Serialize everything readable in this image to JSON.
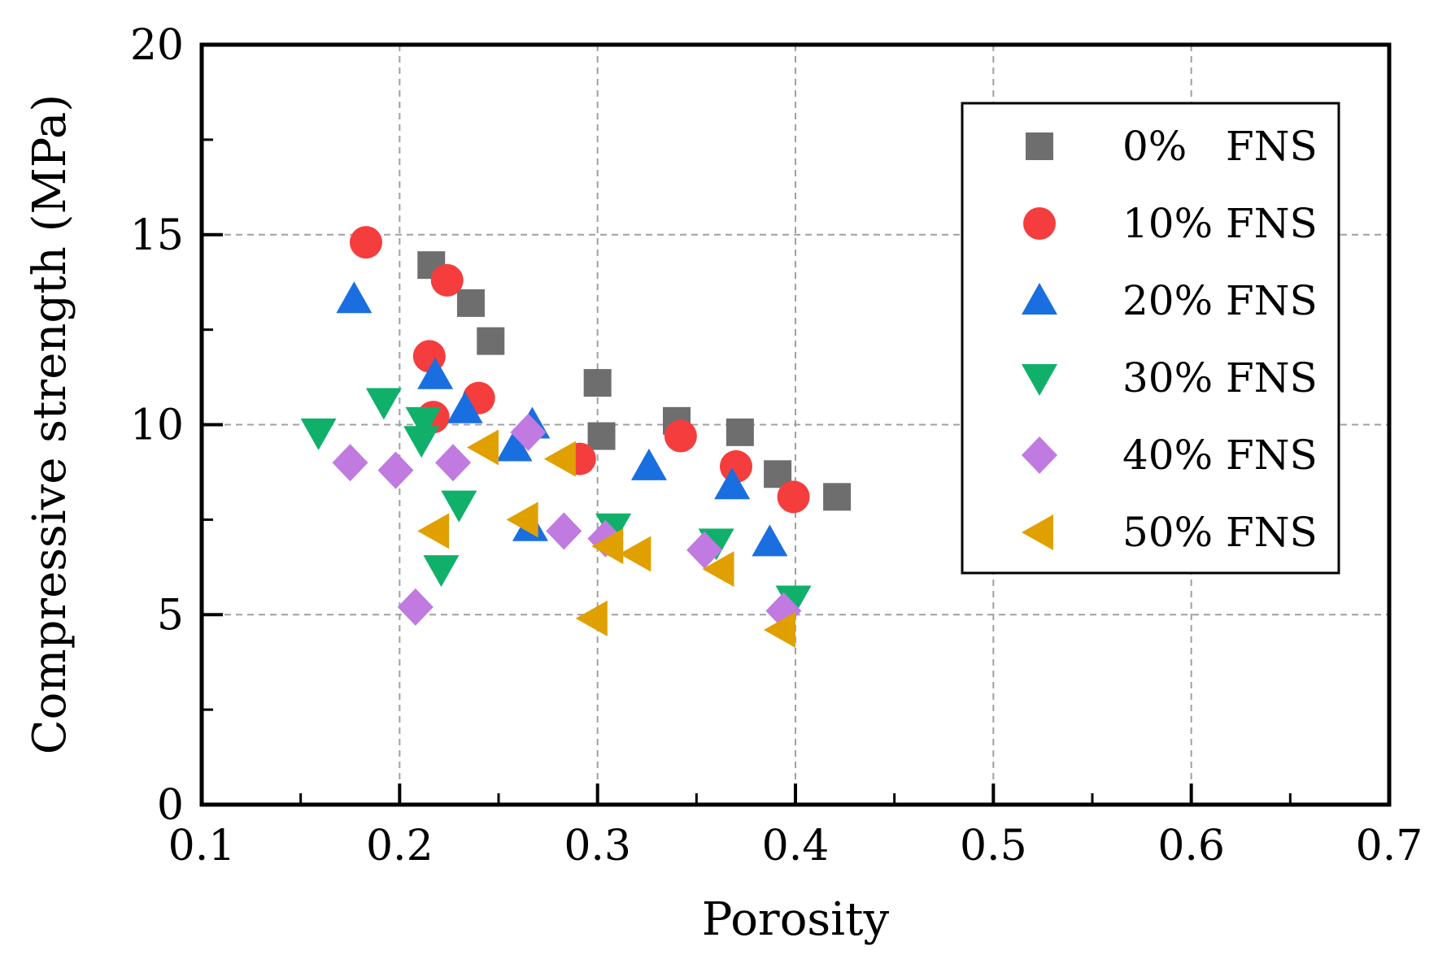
{
  "chart_data": {
    "type": "scatter",
    "title": "",
    "xlabel": "Porosity",
    "ylabel": "Compressive strength (MPa)",
    "xlim": [
      0.1,
      0.7
    ],
    "ylim": [
      0,
      20
    ],
    "x_ticks": [
      0.1,
      0.2,
      0.3,
      0.4,
      0.5,
      0.6,
      0.7
    ],
    "x_tick_labels": [
      "0.1",
      "0.2",
      "0.3",
      "0.4",
      "0.5",
      "0.6",
      "0.7"
    ],
    "y_ticks": [
      0,
      5,
      10,
      15,
      20
    ],
    "y_tick_labels": [
      "0",
      "5",
      "10",
      "15",
      "20"
    ],
    "grid": true,
    "legend_position": "top-right",
    "series": [
      {
        "name": "0%   FNS",
        "marker": "square",
        "color": "#6e6e6e",
        "points": [
          [
            0.216,
            14.2
          ],
          [
            0.236,
            13.2
          ],
          [
            0.246,
            12.2
          ],
          [
            0.3,
            11.1
          ],
          [
            0.302,
            9.7
          ],
          [
            0.34,
            10.1
          ],
          [
            0.372,
            9.8
          ],
          [
            0.391,
            8.7
          ],
          [
            0.421,
            8.1
          ]
        ]
      },
      {
        "name": "10% FNS",
        "marker": "circle",
        "color": "#f53d3d",
        "points": [
          [
            0.183,
            14.8
          ],
          [
            0.224,
            13.8
          ],
          [
            0.215,
            11.8
          ],
          [
            0.24,
            10.7
          ],
          [
            0.217,
            10.2
          ],
          [
            0.291,
            9.1
          ],
          [
            0.342,
            9.7
          ],
          [
            0.37,
            8.9
          ],
          [
            0.399,
            8.1
          ]
        ]
      },
      {
        "name": "20% FNS",
        "marker": "triangle-up",
        "color": "#1a6fe0",
        "points": [
          [
            0.177,
            13.3
          ],
          [
            0.218,
            11.3
          ],
          [
            0.233,
            10.4
          ],
          [
            0.267,
            10.0
          ],
          [
            0.258,
            9.4
          ],
          [
            0.266,
            7.3
          ],
          [
            0.326,
            8.9
          ],
          [
            0.368,
            8.4
          ],
          [
            0.387,
            6.9
          ]
        ]
      },
      {
        "name": "30% FNS",
        "marker": "triangle-down",
        "color": "#10b06a",
        "points": [
          [
            0.159,
            9.8
          ],
          [
            0.192,
            10.6
          ],
          [
            0.212,
            10.1
          ],
          [
            0.211,
            9.6
          ],
          [
            0.23,
            7.9
          ],
          [
            0.221,
            6.2
          ],
          [
            0.308,
            7.3
          ],
          [
            0.36,
            6.9
          ],
          [
            0.399,
            5.4
          ]
        ]
      },
      {
        "name": "40% FNS",
        "marker": "diamond",
        "color": "#c07ae0",
        "points": [
          [
            0.175,
            9.0
          ],
          [
            0.198,
            8.8
          ],
          [
            0.227,
            9.0
          ],
          [
            0.265,
            9.8
          ],
          [
            0.208,
            5.2
          ],
          [
            0.283,
            7.2
          ],
          [
            0.304,
            7.0
          ],
          [
            0.354,
            6.7
          ],
          [
            0.394,
            5.1
          ]
        ]
      },
      {
        "name": "50% FNS",
        "marker": "triangle-left",
        "color": "#e0a000",
        "points": [
          [
            0.243,
            9.4
          ],
          [
            0.282,
            9.1
          ],
          [
            0.263,
            7.5
          ],
          [
            0.218,
            7.2
          ],
          [
            0.306,
            6.8
          ],
          [
            0.32,
            6.6
          ],
          [
            0.362,
            6.2
          ],
          [
            0.298,
            4.9
          ],
          [
            0.393,
            4.6
          ]
        ]
      }
    ]
  }
}
